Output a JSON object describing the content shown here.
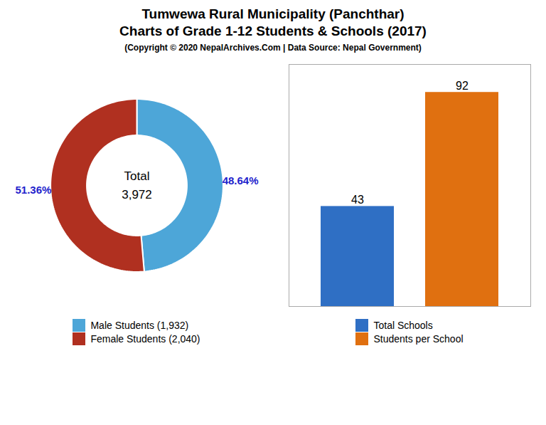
{
  "title": "Tumwewa Rural Municipality (Panchthar)\nCharts of Grade 1-12 Students & Schools (2017)",
  "subtitle": "(Copyright © 2020 NepalArchives.Com | Data Source: Nepal Government)",
  "chart_data": [
    {
      "type": "donut",
      "categories": [
        "Male Students (1,932)",
        "Female Students (2,040)"
      ],
      "values": [
        48.64,
        51.36
      ],
      "value_labels": [
        "48.64%",
        "51.36%"
      ],
      "colors": [
        "#4da6d8",
        "#b03020"
      ],
      "data_labels": true,
      "legend": "bottom",
      "annotations": [
        "Total",
        "3,972"
      ]
    },
    {
      "type": "bar",
      "categories": [
        "Total Schools",
        "Students per School"
      ],
      "values": [
        43,
        92
      ],
      "colors": [
        "#2f6fc4",
        "#e07010"
      ],
      "data_labels": true,
      "ylim": [
        0,
        104
      ],
      "tick_labels": false,
      "legend": "bottom"
    }
  ]
}
